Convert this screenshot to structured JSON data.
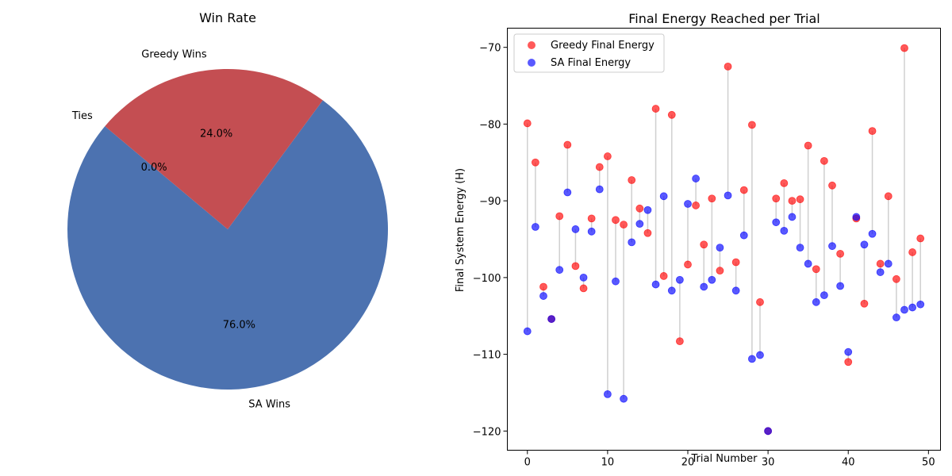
{
  "chart_data": [
    {
      "type": "pie",
      "title": "Win Rate",
      "slices": [
        {
          "label": "SA Wins",
          "value": 76.0,
          "pct_label": "76.0%",
          "color": "#4c72b0"
        },
        {
          "label": "Greedy Wins",
          "value": 24.0,
          "pct_label": "24.0%",
          "color": "#c44e52"
        },
        {
          "label": "Ties",
          "value": 0.0,
          "pct_label": "0.0%",
          "color": "#55a868"
        }
      ]
    },
    {
      "type": "scatter",
      "title": "Final Energy Reached per Trial",
      "xlabel": "Trial Number",
      "ylabel": "Final System Energy (H)",
      "xlim": [
        -2.5,
        51.5
      ],
      "ylim": [
        -122.5,
        -67.5
      ],
      "xticks": [
        0,
        10,
        20,
        30,
        40,
        50
      ],
      "yticks": [
        -120,
        -110,
        -100,
        -90,
        -80,
        -70
      ],
      "legend_position": "upper-left",
      "x": [
        0,
        1,
        2,
        3,
        4,
        5,
        6,
        7,
        8,
        9,
        10,
        11,
        12,
        13,
        14,
        15,
        16,
        17,
        18,
        19,
        20,
        21,
        22,
        23,
        24,
        25,
        26,
        27,
        28,
        29,
        30,
        31,
        32,
        33,
        34,
        35,
        36,
        37,
        38,
        39,
        40,
        41,
        42,
        43,
        44,
        45,
        46,
        47,
        48,
        49
      ],
      "series": [
        {
          "name": "Greedy Final Energy",
          "color": "#ff0000",
          "values": [
            -79.9,
            -85.0,
            -101.2,
            -105.4,
            -92.0,
            -82.7,
            -98.5,
            -101.4,
            -92.3,
            -85.6,
            -84.2,
            -92.5,
            -93.1,
            -87.3,
            -91.0,
            -94.2,
            -78.0,
            -99.8,
            -78.8,
            -108.3,
            -98.3,
            -90.6,
            -95.7,
            -89.7,
            -99.1,
            -72.5,
            -98.0,
            -88.6,
            -80.1,
            -103.2,
            -120.0,
            -89.7,
            -87.7,
            -90.0,
            -89.8,
            -82.8,
            -98.9,
            -84.8,
            -88.0,
            -96.9,
            -111.0,
            -92.3,
            -103.4,
            -80.9,
            -98.2,
            -89.4,
            -100.2,
            -70.1,
            -96.7,
            -94.9
          ]
        },
        {
          "name": "SA Final Energy",
          "color": "#0000ff",
          "values": [
            -107.0,
            -93.4,
            -102.4,
            -105.4,
            -99.0,
            -88.9,
            -93.7,
            -100.0,
            -94.0,
            -88.5,
            -115.2,
            -100.5,
            -115.8,
            -95.4,
            -93.0,
            -91.2,
            -100.9,
            -89.4,
            -101.7,
            -100.3,
            -90.4,
            -87.1,
            -101.2,
            -100.3,
            -96.1,
            -89.3,
            -101.7,
            -94.5,
            -110.6,
            -110.1,
            -120.0,
            -92.8,
            -93.9,
            -92.1,
            -96.1,
            -98.2,
            -103.2,
            -102.3,
            -95.9,
            -101.1,
            -109.7,
            -92.1,
            -95.7,
            -94.3,
            -99.3,
            -98.2,
            -105.2,
            -104.2,
            -103.9,
            -103.5
          ]
        }
      ]
    }
  ]
}
